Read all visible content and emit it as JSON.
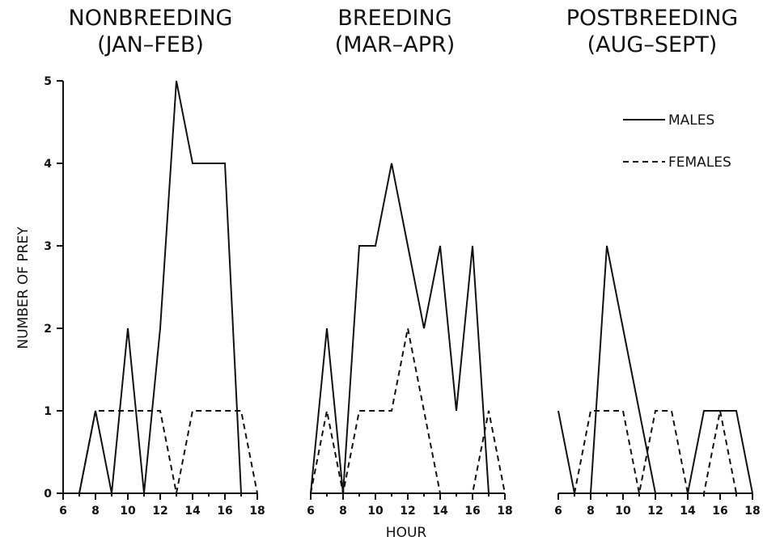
{
  "chart_data": {
    "type": "line",
    "ylabel": "NUMBER OF PREY",
    "xlabel": "HOUR",
    "ylim": [
      0,
      5
    ],
    "y_ticks": [
      "0",
      "1",
      "2",
      "3",
      "4",
      "5"
    ],
    "legend": {
      "placement": "top-right",
      "entries": [
        {
          "label": "MALES",
          "style": "solid"
        },
        {
          "label": "FEMALES",
          "style": "dashed"
        }
      ]
    },
    "panels": [
      {
        "title_line1": "NONBREEDING",
        "title_line2": "(JAN–FEB)",
        "xlim": [
          6,
          18
        ],
        "x_ticks": [
          "6",
          "8",
          "10",
          "12",
          "14",
          "16",
          "18"
        ],
        "series": [
          {
            "name": "MALES",
            "style": "solid",
            "x": [
              7,
              8,
              9,
              10,
              11,
              12,
              13,
              14,
              15,
              16,
              17
            ],
            "y": [
              0,
              1,
              0,
              2,
              0,
              2,
              5,
              4,
              4,
              4,
              0
            ]
          },
          {
            "name": "FEMALES",
            "style": "dashed",
            "x": [
              7,
              8,
              9,
              10,
              11,
              12,
              13,
              14,
              15,
              16,
              17,
              18
            ],
            "y": [
              0,
              1,
              1,
              1,
              1,
              1,
              0,
              1,
              1,
              1,
              1,
              0
            ]
          }
        ]
      },
      {
        "title_line1": "BREEDING",
        "title_line2": "(MAR–APR)",
        "xlim": [
          6,
          18
        ],
        "x_ticks": [
          "6",
          "8",
          "10",
          "12",
          "14",
          "16",
          "18"
        ],
        "series": [
          {
            "name": "MALES",
            "style": "solid",
            "x": [
              6,
              7,
              8,
              9,
              10,
              11,
              12,
              13,
              14,
              15,
              16,
              17
            ],
            "y": [
              0,
              2,
              0,
              3,
              3,
              4,
              3,
              2,
              3,
              1,
              3,
              0
            ]
          },
          {
            "name": "FEMALES",
            "style": "dashed",
            "x": [
              6,
              7,
              8,
              9,
              10,
              11,
              12,
              13,
              14,
              15,
              16,
              17,
              18
            ],
            "y": [
              0,
              1,
              0,
              1,
              1,
              1,
              2,
              1,
              0,
              0,
              0,
              1,
              0
            ]
          }
        ]
      },
      {
        "title_line1": "POSTBREEDING",
        "title_line2": "(AUG–SEPT)",
        "xlim": [
          6,
          18
        ],
        "x_ticks": [
          "6",
          "8",
          "10",
          "12",
          "14",
          "16",
          "18"
        ],
        "series": [
          {
            "name": "MALES",
            "style": "solid",
            "x": [
              6,
              7,
              8,
              9,
              10,
              11,
              12,
              13,
              14,
              15,
              16,
              17,
              18
            ],
            "y": [
              1,
              0,
              0,
              3,
              2,
              1,
              0,
              0,
              0,
              1,
              1,
              1,
              0
            ]
          },
          {
            "name": "FEMALES",
            "style": "dashed",
            "x": [
              7,
              8,
              9,
              10,
              11,
              12,
              13,
              14,
              15,
              16,
              17
            ],
            "y": [
              0,
              1,
              1,
              1,
              0,
              1,
              1,
              0,
              0,
              1,
              0
            ]
          }
        ]
      }
    ]
  }
}
